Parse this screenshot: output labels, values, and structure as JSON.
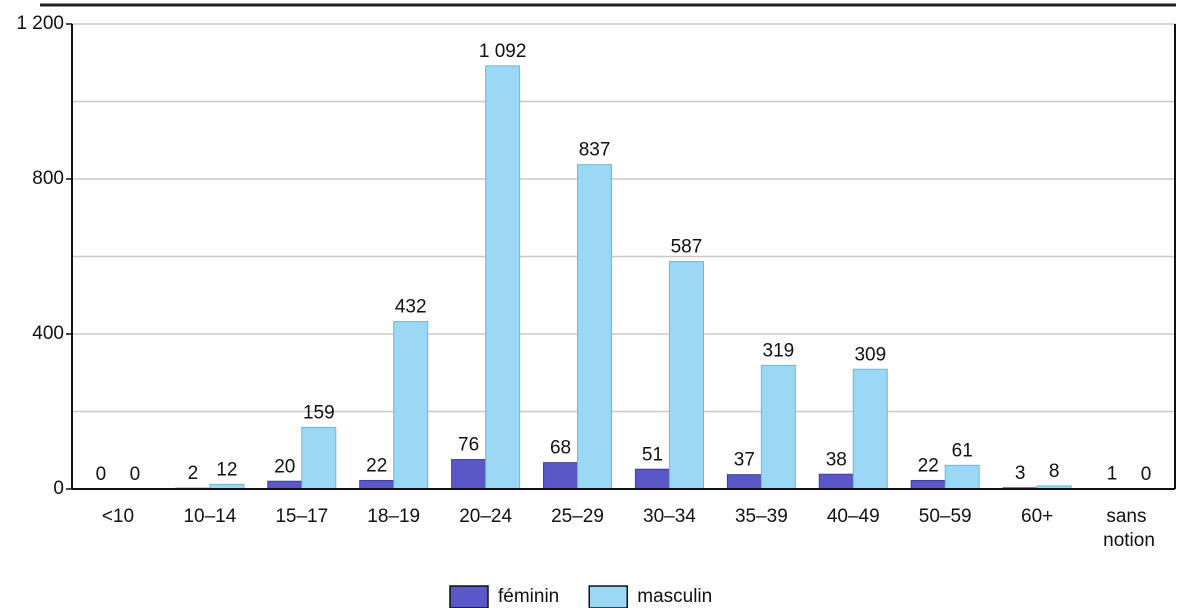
{
  "chart_data": {
    "type": "bar",
    "categories": [
      "<10",
      "10–14",
      "15–17",
      "18–19",
      "20–24",
      "25–29",
      "30–34",
      "35–39",
      "40–49",
      "50–59",
      "60+",
      "sans notion"
    ],
    "series": [
      {
        "name": "féminin",
        "color": "#5a58c6",
        "values": [
          0,
          2,
          20,
          22,
          76,
          68,
          51,
          37,
          38,
          22,
          3,
          1
        ]
      },
      {
        "name": "masculin",
        "color": "#9ad8f6",
        "values": [
          0,
          12,
          159,
          432,
          1092,
          837,
          587,
          319,
          309,
          61,
          8,
          0
        ],
        "value_labels": [
          "0",
          "12",
          "159",
          "432",
          "1 092",
          "837",
          "587",
          "319",
          "309",
          "61",
          "8",
          "0"
        ]
      }
    ],
    "ylim": [
      0,
      1200
    ],
    "yticks": [
      0,
      400,
      800,
      {
        "value": 1200,
        "label": "1 200"
      }
    ],
    "ygrid": [
      200,
      400,
      600,
      800,
      1000,
      1200
    ],
    "grid": true,
    "legend": "bottom"
  }
}
